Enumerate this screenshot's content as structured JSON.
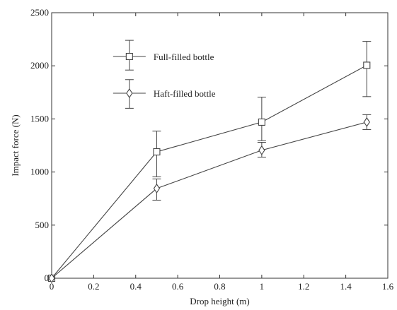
{
  "chart_data": {
    "type": "line",
    "title": "",
    "xlabel": "Drop height (m)",
    "ylabel": "Impact force (N)",
    "xlim": [
      0,
      1.6
    ],
    "ylim": [
      0,
      2500
    ],
    "xticks": [
      0,
      0.2,
      0.4,
      0.6,
      0.8,
      1,
      1.2,
      1.4,
      1.6
    ],
    "xtick_labels": [
      "0",
      "0.2",
      "0.4",
      "0.6",
      "0.8",
      "1",
      "1.2",
      "1.4",
      "1.6"
    ],
    "yticks": [
      0,
      500,
      1000,
      1500,
      2000,
      2500
    ],
    "ytick_labels": [
      "0",
      "500",
      "1000",
      "1500",
      "2000",
      "2500"
    ],
    "grid": false,
    "legend_position": "top-left",
    "series": [
      {
        "name": "Full-filled bottle",
        "marker": "square",
        "color": "#444444",
        "x": [
          0,
          0.5,
          1,
          1.5
        ],
        "y": [
          0,
          1190,
          1470,
          2005
        ],
        "err_low": [
          0,
          235,
          175,
          295
        ],
        "err_high": [
          0,
          195,
          235,
          225
        ]
      },
      {
        "name": "Haft-filled bottle",
        "marker": "diamond",
        "color": "#444444",
        "x": [
          0,
          0.5,
          1,
          1.5
        ],
        "y": [
          0,
          845,
          1205,
          1470
        ],
        "err_low": [
          0,
          110,
          65,
          70
        ],
        "err_high": [
          0,
          90,
          75,
          70
        ]
      }
    ]
  }
}
